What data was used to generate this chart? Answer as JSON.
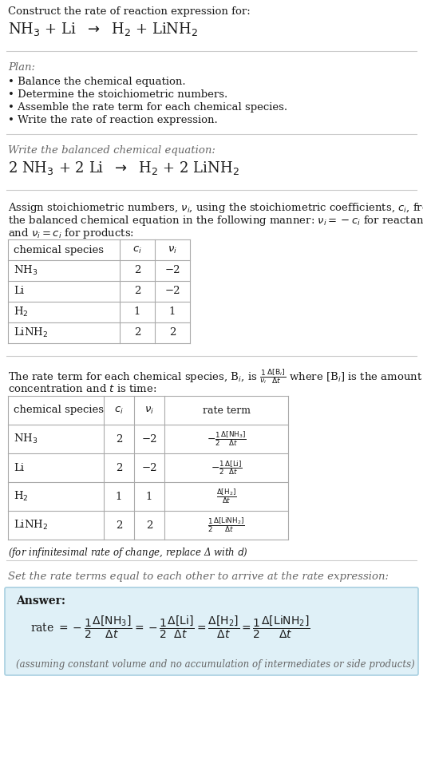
{
  "bg_color": "#ffffff",
  "text_color": "#1a1a1a",
  "gray_text": "#666666",
  "light_blue_bg": "#dff0f7",
  "light_blue_border": "#a8cfe0",
  "title_line1": "Construct the rate of reaction expression for:",
  "plan_header": "Plan:",
  "plan_items": [
    "• Balance the chemical equation.",
    "• Determine the stoichiometric numbers.",
    "• Assemble the rate term for each chemical species.",
    "• Write the rate of reaction expression."
  ],
  "balanced_header": "Write the balanced chemical equation:",
  "assign_text1": "Assign stoichiometric numbers, $\\nu_i$, using the stoichiometric coefficients, $c_i$, from",
  "assign_text2": "the balanced chemical equation in the following manner: $\\nu_i = -c_i$ for reactants",
  "assign_text3": "and $\\nu_i = c_i$ for products:",
  "table1_headers": [
    "chemical species",
    "$c_i$",
    "$\\nu_i$"
  ],
  "table1_rows": [
    [
      "NH$_3$",
      "2",
      "−2"
    ],
    [
      "Li",
      "2",
      "−2"
    ],
    [
      "H$_2$",
      "1",
      "1"
    ],
    [
      "LiNH$_2$",
      "2",
      "2"
    ]
  ],
  "rate_text1": "The rate term for each chemical species, B$_i$, is $\\frac{1}{\\nu_i}\\frac{\\Delta[\\mathrm{B}_i]}{\\Delta t}$ where [B$_i$] is the amount",
  "rate_text2": "concentration and $t$ is time:",
  "table2_headers": [
    "chemical species",
    "$c_i$",
    "$\\nu_i$",
    "rate term"
  ],
  "table2_rows": [
    [
      "NH$_3$",
      "2",
      "−2",
      "$-\\frac{1}{2}\\frac{\\Delta[\\mathrm{NH_3}]}{\\Delta t}$"
    ],
    [
      "Li",
      "2",
      "−2",
      "$-\\frac{1}{2}\\frac{\\Delta[\\mathrm{Li}]}{\\Delta t}$"
    ],
    [
      "H$_2$",
      "1",
      "1",
      "$\\frac{\\Delta[\\mathrm{H_2}]}{\\Delta t}$"
    ],
    [
      "LiNH$_2$",
      "2",
      "2",
      "$\\frac{1}{2}\\frac{\\Delta[\\mathrm{LiNH_2}]}{\\Delta t}$"
    ]
  ],
  "infinitesimal_note": "(for infinitesimal rate of change, replace Δ with $d$)",
  "set_rate_text": "Set the rate terms equal to each other to arrive at the rate expression:",
  "answer_label": "Answer:",
  "answer_note": "(assuming constant volume and no accumulation of intermediates or side products)"
}
